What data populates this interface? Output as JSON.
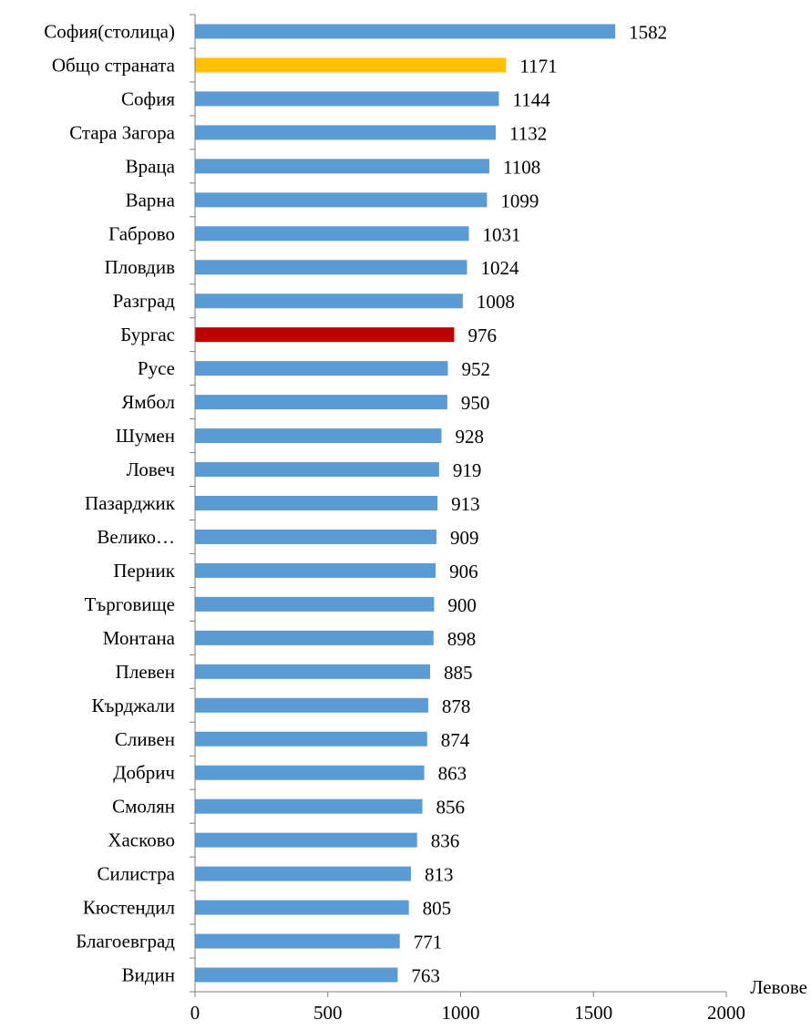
{
  "chart_data": {
    "type": "bar",
    "orientation": "horizontal",
    "categories": [
      "София(столица)",
      "Общо страната",
      "София",
      "Стара Загора",
      "Враца",
      "Варна",
      "Габрово",
      "Пловдив",
      "Разград",
      "Бургас",
      "Русе",
      "Ямбол",
      "Шумен",
      "Ловеч",
      "Пазарджик",
      "Велико…",
      "Перник",
      "Търговище",
      "Монтана",
      "Плевен",
      "Кърджали",
      "Сливен",
      "Добрич",
      "Смолян",
      "Хасково",
      "Силистра",
      "Кюстендил",
      "Благоевград",
      "Видин"
    ],
    "values": [
      1582,
      1171,
      1144,
      1132,
      1108,
      1099,
      1031,
      1024,
      1008,
      976,
      952,
      950,
      928,
      919,
      913,
      909,
      906,
      900,
      898,
      885,
      878,
      874,
      863,
      856,
      836,
      813,
      805,
      771,
      763
    ],
    "bar_colors": [
      "#5b9bd5",
      "#ffc000",
      "#5b9bd5",
      "#5b9bd5",
      "#5b9bd5",
      "#5b9bd5",
      "#5b9bd5",
      "#5b9bd5",
      "#5b9bd5",
      "#c00000",
      "#5b9bd5",
      "#5b9bd5",
      "#5b9bd5",
      "#5b9bd5",
      "#5b9bd5",
      "#5b9bd5",
      "#5b9bd5",
      "#5b9bd5",
      "#5b9bd5",
      "#5b9bd5",
      "#5b9bd5",
      "#5b9bd5",
      "#5b9bd5",
      "#5b9bd5",
      "#5b9bd5",
      "#5b9bd5",
      "#5b9bd5",
      "#5b9bd5",
      "#5b9bd5"
    ],
    "xlim": [
      0,
      2000
    ],
    "x_ticks": [
      0,
      500,
      1000,
      1500,
      2000
    ],
    "xlabel": "Левове",
    "ylabel": "",
    "title": "",
    "grid": false,
    "data_labels": true
  }
}
